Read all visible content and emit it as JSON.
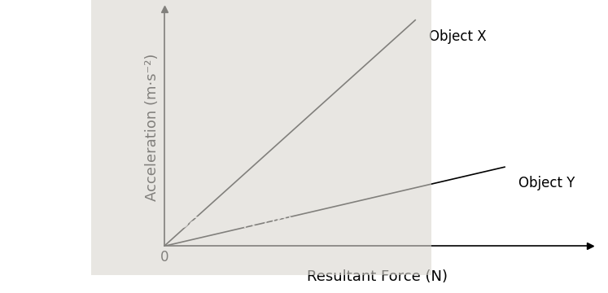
{
  "chart_data": {
    "type": "line",
    "x_label": "Resultant Force (N)",
    "y_label": "Acceleration (m·s⁻²)",
    "annotations": [
      {
        "text": "Sanmorephysics.com"
      }
    ],
    "series": [
      {
        "name": "Object X",
        "color": "#000000",
        "x": [
          0,
          5.9
        ],
        "values": [
          0,
          10
        ]
      },
      {
        "name": "Object Y",
        "color": "#000000",
        "x": [
          0,
          8.0
        ],
        "values": [
          0,
          3.5
        ]
      }
    ],
    "xlim": [
      0,
      10
    ],
    "ylim": [
      0,
      10.5
    ],
    "xticks": [
      0
    ],
    "yticks": [],
    "tick_labels": "x",
    "grid": false
  }
}
